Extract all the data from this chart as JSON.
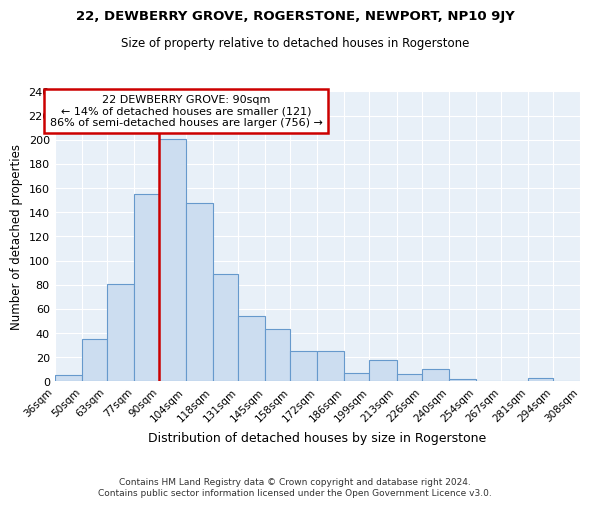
{
  "title": "22, DEWBERRY GROVE, ROGERSTONE, NEWPORT, NP10 9JY",
  "subtitle": "Size of property relative to detached houses in Rogerstone",
  "xlabel": "Distribution of detached houses by size in Rogerstone",
  "ylabel": "Number of detached properties",
  "bar_color": "#ccddf0",
  "bar_edge_color": "#6699cc",
  "background_color": "#e8f0f8",
  "grid_color": "#ffffff",
  "annotation_box_color": "#cc0000",
  "vline_color": "#cc0000",
  "vline_x": 90,
  "annotation_text": "22 DEWBERRY GROVE: 90sqm\n← 14% of detached houses are smaller (121)\n86% of semi-detached houses are larger (756) →",
  "footer_text": "Contains HM Land Registry data © Crown copyright and database right 2024.\nContains public sector information licensed under the Open Government Licence v3.0.",
  "bin_edges": [
    36,
    50,
    63,
    77,
    90,
    104,
    118,
    131,
    145,
    158,
    172,
    186,
    199,
    213,
    226,
    240,
    254,
    267,
    281,
    294,
    308
  ],
  "bin_labels": [
    "36sqm",
    "50sqm",
    "63sqm",
    "77sqm",
    "90sqm",
    "104sqm",
    "118sqm",
    "131sqm",
    "145sqm",
    "158sqm",
    "172sqm",
    "186sqm",
    "199sqm",
    "213sqm",
    "226sqm",
    "240sqm",
    "254sqm",
    "267sqm",
    "281sqm",
    "294sqm",
    "308sqm"
  ],
  "counts": [
    5,
    35,
    81,
    155,
    201,
    148,
    89,
    54,
    43,
    25,
    25,
    7,
    18,
    6,
    10,
    2,
    0,
    0,
    3,
    0
  ],
  "ylim": [
    0,
    240
  ],
  "yticks": [
    0,
    20,
    40,
    60,
    80,
    100,
    120,
    140,
    160,
    180,
    200,
    220,
    240
  ]
}
